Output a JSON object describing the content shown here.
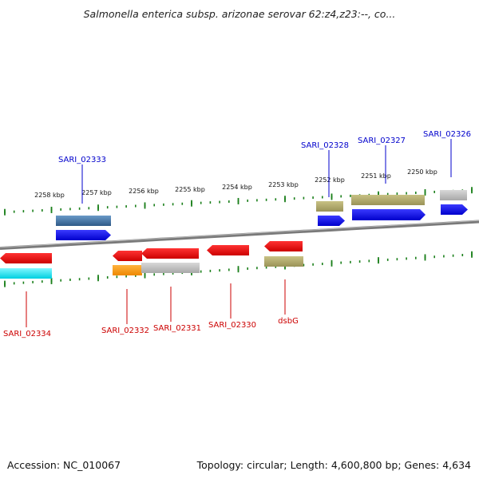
{
  "title": "Salmonella enterica subsp. arizonae serovar 62:z4,z23:--, co...",
  "footer": {
    "accession": "Accession: NC_010067",
    "topology": "Topology: circular; Length: 4,600,800 bp; Genes: 4,634"
  },
  "colors": {
    "forward_label": "#0000cc",
    "reverse_label": "#cc0000",
    "backbone": "#7a7a7a",
    "tick": "#1a7f1a",
    "forward_cds": "#0000ee",
    "reverse_cds": "#ee0000",
    "rna_olive": "#b8b070",
    "rna_steel": "#4a7aa8",
    "rna_cyan": "#00e5ee",
    "rna_orange": "#ff9900",
    "rna_gray": "#bbbbbb"
  },
  "kbp_labels": [
    "2258 kbp",
    "2257 kbp",
    "2256 kbp",
    "2255 kbp",
    "2254 kbp",
    "2253 kbp",
    "2252 kbp",
    "2251 kbp",
    "2250 kbp"
  ],
  "gene_labels": {
    "forward": [
      "SARI_02333",
      "SARI_02328",
      "SARI_02327",
      "SARI_02326"
    ],
    "reverse": [
      "SARI_02334",
      "SARI_02332",
      "SARI_02331",
      "SARI_02330",
      "dsbG"
    ]
  }
}
